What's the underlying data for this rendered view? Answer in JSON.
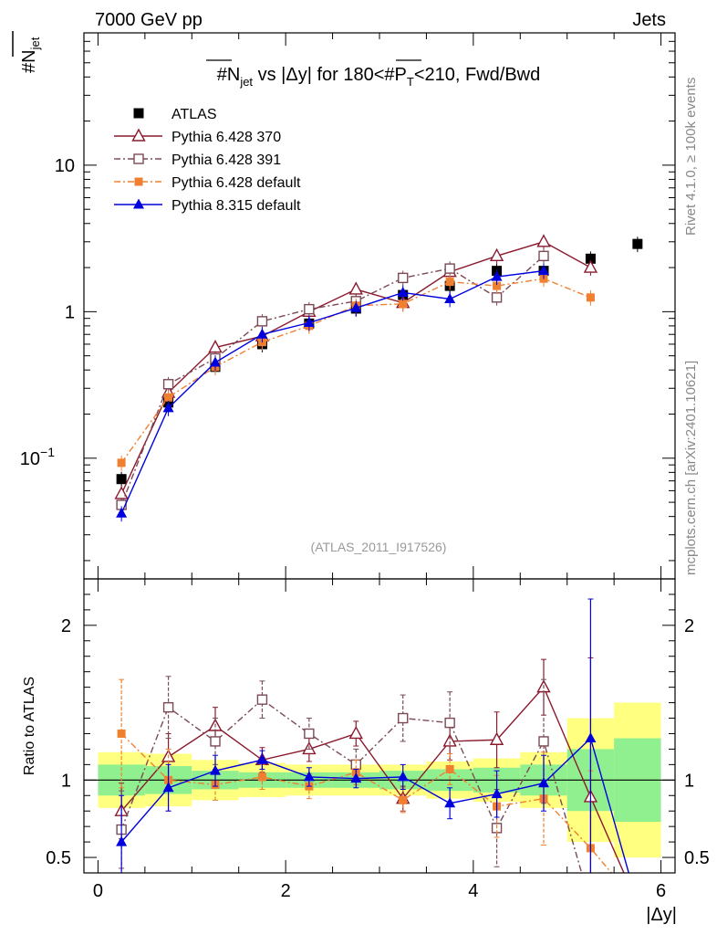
{
  "header": {
    "left": "7000 GeV pp",
    "right": "Jets"
  },
  "side_labels": {
    "rivet": "Rivet 4.1.0, ≥ 100k events",
    "mcplots": "mcplots.cern.ch [arXiv:2401.10621]"
  },
  "chart_data": {
    "type": "scatter",
    "title": "#N_jet vs |Δy| for 180<#P_T<210, Fwd/Bwd",
    "title_parts": {
      "a": "#",
      "b": "N",
      "c": "jet",
      "d": " vs |Δy| for 180<#",
      "e": "P",
      "f": "T",
      "g": "<210, Fwd/Bwd"
    },
    "ylabel_parts": {
      "main": "#N",
      "sub": "jet"
    },
    "xlabel": "|Δy|",
    "ratio_ylabel": "Ratio to ATLAS",
    "reference": "(ATLAS_2011_I917526)",
    "main_ylim": [
      0.015,
      80
    ],
    "main_yscale": "log",
    "main_yticks": [
      {
        "v": 0.1,
        "base": "10",
        "exp": "−1"
      },
      {
        "v": 1,
        "base": "1",
        "exp": ""
      },
      {
        "v": 10,
        "base": "10",
        "exp": ""
      }
    ],
    "xlim": [
      -0.15,
      6.15
    ],
    "xticks": [
      {
        "v": 0,
        "label": "0"
      },
      {
        "v": 2,
        "label": "2"
      },
      {
        "v": 4,
        "label": "4"
      },
      {
        "v": 6,
        "label": "6"
      }
    ],
    "ratio_ylim": [
      0.4,
      2.3
    ],
    "ratio_yticks": [
      {
        "v": 0.5,
        "label": "0.5"
      },
      {
        "v": 1,
        "label": "1"
      },
      {
        "v": 2,
        "label": "2"
      }
    ],
    "bins": [
      [
        0,
        0.5
      ],
      [
        0.5,
        1
      ],
      [
        1,
        1.5
      ],
      [
        1.5,
        2
      ],
      [
        2,
        2.5
      ],
      [
        2.5,
        3
      ],
      [
        3,
        3.5
      ],
      [
        3.5,
        4
      ],
      [
        4,
        4.5
      ],
      [
        4.5,
        5
      ],
      [
        5,
        5.5
      ],
      [
        5.5,
        6
      ]
    ],
    "ratio_band_stat": [
      0.1,
      0.09,
      0.06,
      0.05,
      0.05,
      0.05,
      0.06,
      0.07,
      0.08,
      0.1,
      0.2,
      0.27
    ],
    "ratio_band_total": [
      0.18,
      0.17,
      0.13,
      0.11,
      0.1,
      0.1,
      0.1,
      0.12,
      0.14,
      0.18,
      0.4,
      0.5
    ],
    "series": [
      {
        "name": "ATLAS",
        "color": "#000000",
        "marker": "square-filled",
        "line": "none",
        "x": [
          0.25,
          0.75,
          1.25,
          1.75,
          2.25,
          2.75,
          3.25,
          3.75,
          4.25,
          4.75,
          5.25,
          5.75
        ],
        "y": [
          0.072,
          0.24,
          0.42,
          0.6,
          0.83,
          1.05,
          1.3,
          1.5,
          1.9,
          1.9,
          2.3,
          2.9
        ]
      },
      {
        "name": "Pythia 6.428 370",
        "color": "#8b1a2e",
        "marker": "triangle-open",
        "line": "solid",
        "x": [
          0.25,
          0.75,
          1.25,
          1.75,
          2.25,
          2.75,
          3.25,
          3.75,
          4.25,
          4.75,
          5.25
        ],
        "y": [
          0.057,
          0.28,
          0.57,
          0.68,
          1.0,
          1.42,
          1.15,
          1.87,
          2.4,
          3.0,
          2.0
        ],
        "ratio": [
          0.8,
          1.15,
          1.35,
          1.13,
          1.2,
          1.3,
          0.88,
          1.25,
          1.26,
          1.6,
          0.89
        ],
        "ratio_err": [
          0.18,
          0.15,
          0.12,
          0.08,
          0.08,
          0.08,
          0.08,
          0.12,
          0.18,
          0.18,
          0.9
        ]
      },
      {
        "name": "Pythia 6.428 391",
        "color": "#7a4a55",
        "marker": "square-open",
        "line": "dashdot",
        "x": [
          0.25,
          0.75,
          1.25,
          1.75,
          2.25,
          2.75,
          3.25,
          3.75,
          4.25,
          4.75
        ],
        "y": [
          0.048,
          0.32,
          0.48,
          0.86,
          1.04,
          1.18,
          1.7,
          1.97,
          1.25,
          2.4
        ],
        "ratio": [
          0.68,
          1.47,
          1.25,
          1.52,
          1.3,
          1.1,
          1.4,
          1.37,
          0.69,
          1.25
        ],
        "ratio_err": [
          0.25,
          0.2,
          0.15,
          0.12,
          0.1,
          0.1,
          0.15,
          0.2,
          0.25,
          0.4
        ]
      },
      {
        "name": "Pythia 6.428 default",
        "color": "#f08030",
        "marker": "square-filled-small",
        "line": "dashdot",
        "x": [
          0.25,
          0.75,
          1.25,
          1.75,
          2.25,
          2.75,
          3.25,
          3.75,
          4.25,
          4.75,
          5.25
        ],
        "y": [
          0.093,
          0.26,
          0.42,
          0.62,
          0.8,
          1.1,
          1.13,
          1.6,
          1.5,
          1.68,
          1.25
        ],
        "ratio": [
          1.3,
          1.0,
          0.97,
          1.02,
          0.96,
          1.05,
          0.87,
          1.07,
          0.83,
          0.88,
          0.56
        ],
        "ratio_err": [
          0.35,
          0.2,
          0.1,
          0.08,
          0.08,
          0.08,
          0.08,
          0.1,
          0.2,
          0.3,
          0.5
        ]
      },
      {
        "name": "Pythia 8.315 default",
        "color": "#0000dd",
        "marker": "triangle-filled",
        "line": "solid",
        "x": [
          0.25,
          0.75,
          1.25,
          1.75,
          2.25,
          2.75,
          3.25,
          3.75,
          4.25,
          4.75
        ],
        "y": [
          0.042,
          0.22,
          0.45,
          0.7,
          0.84,
          1.06,
          1.35,
          1.22,
          1.73,
          1.9
        ],
        "ratio": [
          0.6,
          0.95,
          1.06,
          1.13,
          1.02,
          1.01,
          1.02,
          0.85,
          0.91,
          0.98,
          1.27
        ],
        "ratio_x": [
          0.25,
          0.75,
          1.25,
          1.75,
          2.25,
          2.75,
          3.25,
          3.75,
          4.25,
          4.75,
          5.25
        ],
        "ratio_err": [
          0.3,
          0.15,
          0.1,
          0.06,
          0.06,
          0.06,
          0.08,
          0.1,
          0.15,
          0.18,
          0.9
        ]
      }
    ]
  }
}
